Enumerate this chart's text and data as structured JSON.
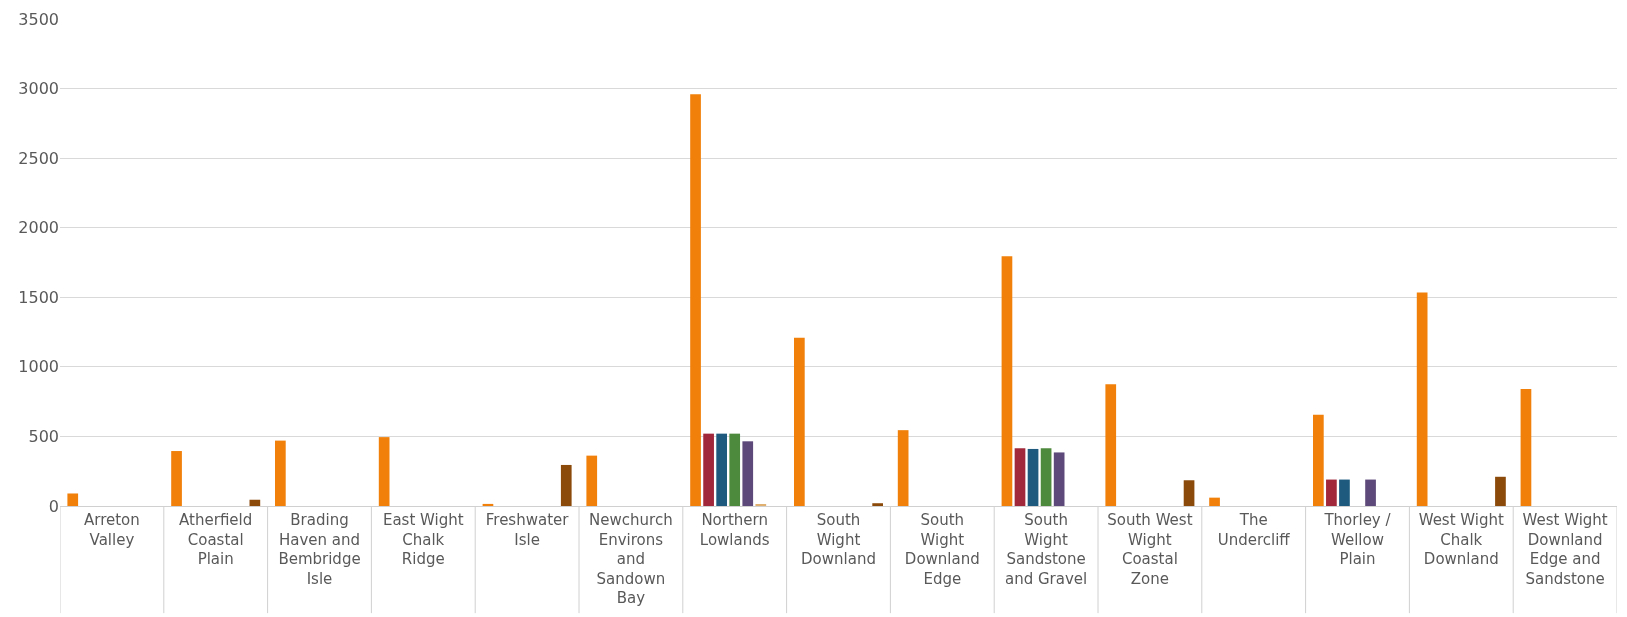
{
  "chart_data": {
    "type": "bar",
    "categories": [
      "Arreton Valley",
      "Atherfield Coastal Plain",
      "Brading Haven and Bembridge Isle",
      "East Wight Chalk Ridge",
      "Freshwater Isle",
      "Newchurch Environs and Sandown Bay",
      "Northern Lowlands",
      "South Wight Downland",
      "South Wight Downland Edge",
      "South Wight Sandstone and Gravel",
      "South West Wight Coastal Zone",
      "The Undercliff",
      "Thorley / Wellow Plain",
      "West Wight Chalk Downland",
      "West Wight Downland Edge and Sandstone"
    ],
    "series": [
      {
        "color": "#f0800a",
        "values": [
          90,
          395,
          470,
          495,
          15,
          362,
          2960,
          1210,
          545,
          1795,
          875,
          60,
          655,
          1535,
          840
        ]
      },
      {
        "color": "#a0283a",
        "values": [
          null,
          null,
          null,
          null,
          null,
          null,
          520,
          null,
          null,
          415,
          null,
          null,
          190,
          null,
          null
        ]
      },
      {
        "color": "#1d5a7e",
        "values": [
          null,
          null,
          null,
          null,
          null,
          null,
          520,
          null,
          null,
          410,
          null,
          null,
          190,
          null,
          null
        ]
      },
      {
        "color": "#4e8a3e",
        "values": [
          null,
          null,
          null,
          null,
          null,
          null,
          520,
          null,
          null,
          415,
          null,
          null,
          null,
          null,
          null
        ]
      },
      {
        "color": "#5e4a7a",
        "values": [
          null,
          null,
          null,
          null,
          null,
          null,
          465,
          null,
          null,
          385,
          null,
          null,
          190,
          null,
          null
        ]
      },
      {
        "color": "#e0b070",
        "values": [
          null,
          null,
          null,
          null,
          null,
          null,
          10,
          null,
          null,
          null,
          null,
          null,
          null,
          null,
          null
        ]
      },
      {
        "color": "#8b4a0a",
        "values": [
          null,
          45,
          null,
          null,
          295,
          null,
          null,
          20,
          null,
          null,
          185,
          null,
          null,
          210,
          null
        ]
      }
    ],
    "ylim": [
      0,
      3500
    ],
    "yticks": [
      0,
      500,
      1000,
      1500,
      2000,
      2500,
      3000,
      3500
    ],
    "grid": "y"
  }
}
